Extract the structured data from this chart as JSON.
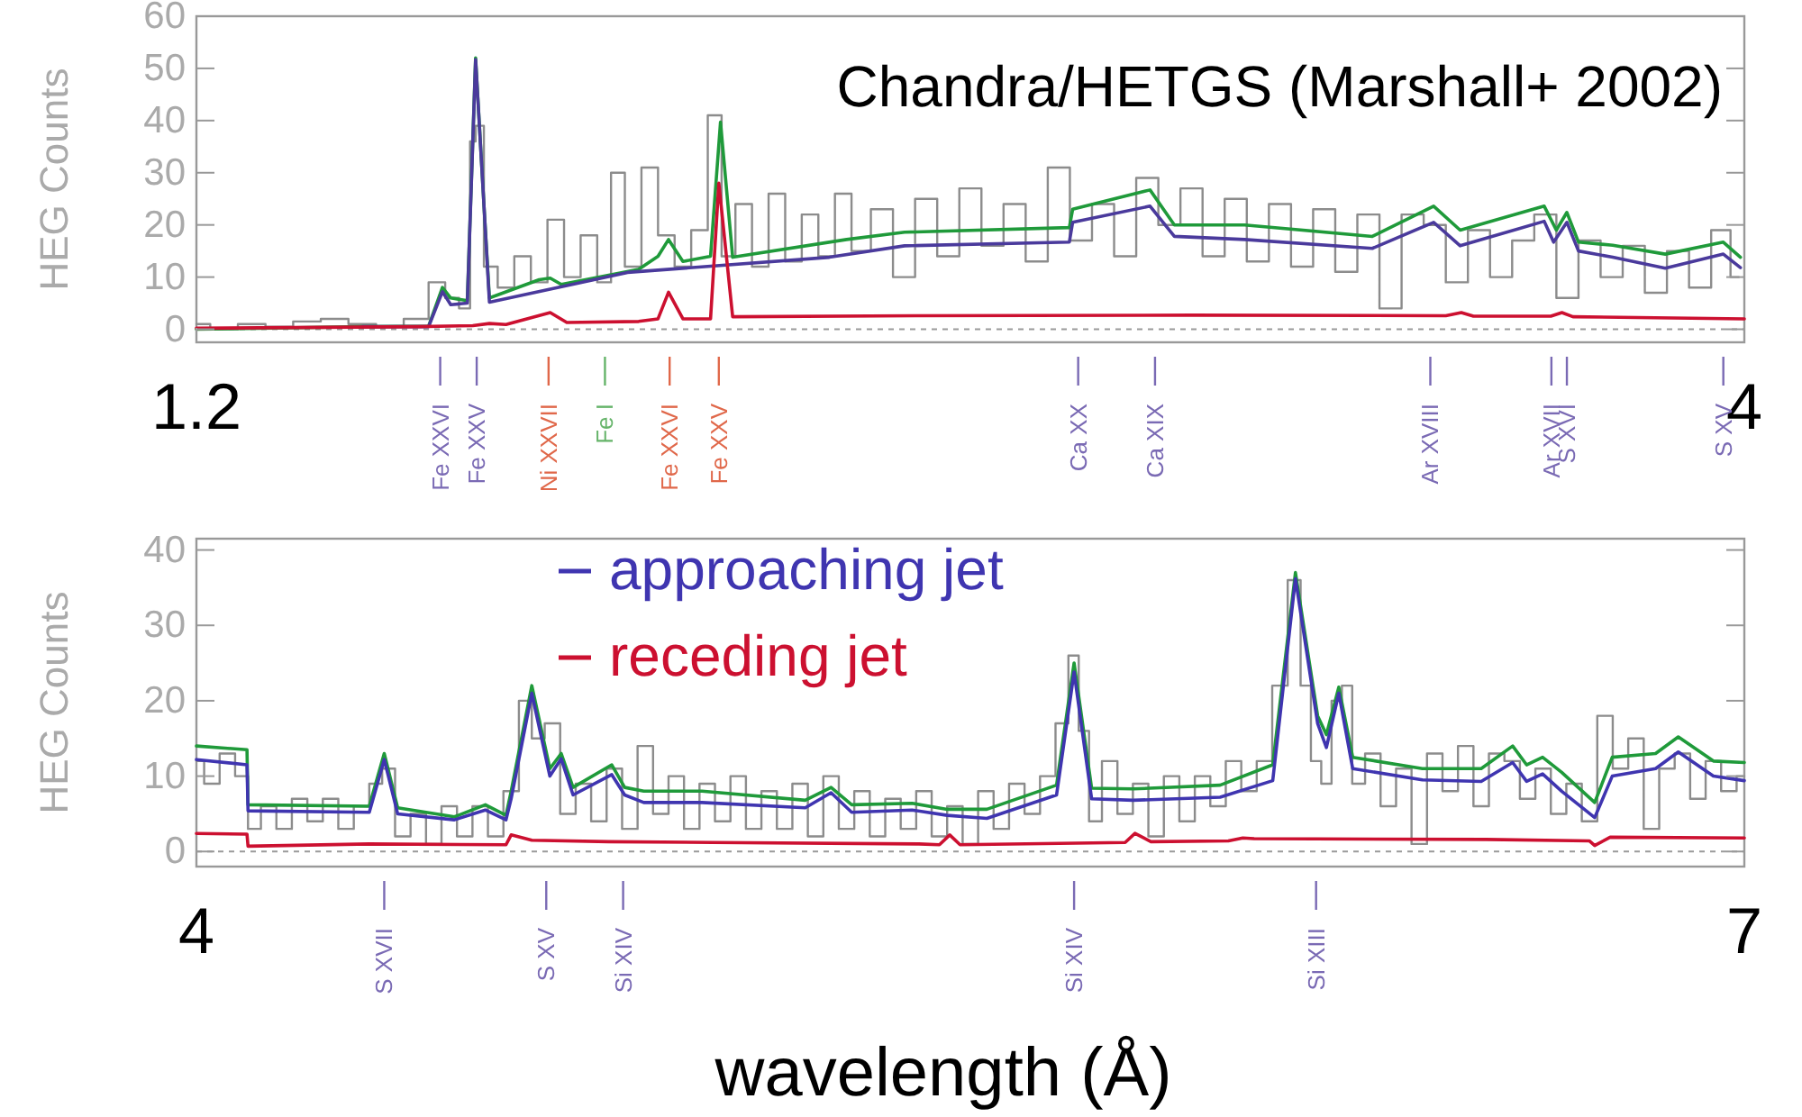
{
  "chart_data": [
    {
      "type": "line",
      "title": "Chandra/HETGS (Marshall+ 2002)",
      "ylabel": "HEG Counts",
      "xlim": [
        1.2,
        4
      ],
      "xticks": [
        1.2,
        4
      ],
      "ylim": [
        -2.5,
        60
      ],
      "yticks": [
        0,
        10,
        20,
        30,
        40,
        50,
        60
      ],
      "series": [
        {
          "type": "step",
          "color": "#8c8c8c",
          "x": [
            1.2,
            1.25,
            1.3,
            1.35,
            1.4,
            1.45,
            1.5,
            1.55,
            1.6,
            1.64,
            1.66,
            1.69,
            1.7,
            1.71,
            1.73,
            1.76,
            1.79,
            1.82,
            1.85,
            1.88,
            1.91,
            1.94,
            1.96,
            1.99,
            2.02,
            2.05,
            2.08,
            2.11,
            2.14,
            2.16,
            2.19,
            2.22,
            2.25,
            2.28,
            2.31,
            2.34,
            2.37,
            2.4,
            2.44,
            2.48,
            2.52,
            2.56,
            2.6,
            2.64,
            2.68,
            2.72,
            2.76,
            2.8,
            2.84,
            2.88,
            2.92,
            2.96,
            3.0,
            3.04,
            3.08,
            3.12,
            3.16,
            3.2,
            3.24,
            3.28,
            3.32,
            3.36,
            3.4,
            3.44,
            3.48,
            3.52,
            3.56,
            3.6,
            3.64,
            3.68,
            3.72,
            3.76,
            3.8,
            3.84,
            3.88,
            3.92,
            3.96,
            3.99
          ],
          "values": [
            1,
            0,
            1,
            0.5,
            1.5,
            2,
            1,
            0.5,
            2,
            9,
            6,
            4,
            36,
            39,
            12,
            8,
            14,
            9,
            21,
            10,
            18,
            9,
            30,
            12,
            31,
            18,
            12,
            19,
            41,
            14,
            24,
            12,
            26,
            13,
            22,
            14,
            26,
            15,
            23,
            10,
            25,
            14,
            27,
            16,
            24,
            13,
            31,
            17,
            24,
            14,
            29,
            20,
            27,
            14,
            25,
            13,
            24,
            12,
            23,
            11,
            22,
            4,
            22,
            20,
            9,
            19,
            10,
            17,
            22,
            6,
            17,
            10,
            16,
            7,
            15,
            8,
            19,
            10
          ]
        },
        {
          "color": "#1f9a3a",
          "x": [
            1.2,
            1.5,
            1.62,
            1.645,
            1.66,
            1.69,
            1.705,
            1.72,
            1.73,
            1.82,
            1.84,
            1.86,
            2.0,
            2.035,
            2.054,
            2.08,
            2.13,
            2.148,
            2.17,
            2.376,
            2.481,
            2.779,
            2.785,
            2.925,
            2.969,
            3.096,
            3.327,
            3.438,
            3.486,
            3.638,
            3.66,
            3.679,
            3.7,
            3.762,
            3.857,
            3.962,
            3.993
          ],
          "values": [
            0,
            0.5,
            0.6,
            8,
            6,
            5.5,
            52,
            24,
            6,
            9.5,
            9.8,
            8.6,
            11.5,
            14,
            17.2,
            13,
            14,
            39.7,
            13.8,
            17.2,
            18.6,
            19.5,
            23,
            26.7,
            20,
            20,
            17.8,
            23.6,
            19,
            23.6,
            19,
            22.4,
            16.7,
            16.1,
            14.4,
            16.7,
            13.8
          ]
        },
        {
          "name": null,
          "color": "#4a3a9c",
          "x": [
            1.5,
            1.62,
            1.645,
            1.66,
            1.69,
            1.705,
            1.72,
            1.73,
            1.98,
            2.345,
            2.481,
            2.779,
            2.785,
            2.925,
            2.969,
            3.096,
            3.327,
            3.438,
            3.486,
            3.638,
            3.655,
            3.679,
            3.7,
            3.762,
            3.857,
            3.962,
            3.993
          ],
          "values": [
            0.5,
            0.5,
            7.2,
            4.7,
            5,
            51.7,
            24,
            5.2,
            10.9,
            13.8,
            16,
            16.7,
            20.5,
            23.6,
            17.8,
            17.2,
            15.5,
            20.5,
            16,
            20.7,
            16.7,
            20.5,
            15,
            13.8,
            11.7,
            14.4,
            11.8
          ]
        },
        {
          "color": "#cc1030",
          "x": [
            1.2,
            1.6,
            1.7,
            1.73,
            1.76,
            1.84,
            1.87,
            2.0,
            2.035,
            2.054,
            2.08,
            2.13,
            2.145,
            2.17,
            2.5,
            3.0,
            3.46,
            3.488,
            3.51,
            3.65,
            3.67,
            3.69,
            4.0
          ],
          "values": [
            0.2,
            0.5,
            0.7,
            1.1,
            0.9,
            3.2,
            1.3,
            1.5,
            2,
            7.1,
            2,
            2,
            28,
            2.4,
            2.6,
            2.7,
            2.6,
            3.2,
            2.5,
            2.5,
            3.2,
            2.4,
            2
          ]
        }
      ],
      "ref_lines": [
        {
          "axis": "y",
          "value": 0,
          "line_style": "dashed",
          "color": "#9a9a9a"
        },
        {
          "axis": "x",
          "value": 1.641,
          "label": "Fe XXVI",
          "color": "#7a6ab4"
        },
        {
          "axis": "x",
          "value": 1.707,
          "label": "Fe XXV",
          "color": "#7a6ab4"
        },
        {
          "axis": "x",
          "value": 1.837,
          "label": "Ni XXVII",
          "color": "#e0684a"
        },
        {
          "axis": "x",
          "value": 1.939,
          "label": "Fe I",
          "color": "#66b46a"
        },
        {
          "axis": "x",
          "value": 2.056,
          "label": "Fe XXVI",
          "color": "#e0684a"
        },
        {
          "axis": "x",
          "value": 2.145,
          "label": "Fe XXV",
          "color": "#e0684a"
        },
        {
          "axis": "x",
          "value": 2.795,
          "label": "Ca XX",
          "color": "#7a6ab4"
        },
        {
          "axis": "x",
          "value": 2.934,
          "label": "Ca XIX",
          "color": "#7a6ab4"
        },
        {
          "axis": "x",
          "value": 3.432,
          "label": "Ar XVIII",
          "color": "#7a6ab4"
        },
        {
          "axis": "x",
          "value": 3.651,
          "label": "Ar XVII",
          "color": "#7a6ab4"
        },
        {
          "axis": "x",
          "value": 3.679,
          "label": "S XVI",
          "color": "#7a6ab4"
        },
        {
          "axis": "x",
          "value": 3.962,
          "label": "S XV",
          "color": "#7a6ab4"
        }
      ]
    },
    {
      "type": "line",
      "xlabel": "wavelength (Å)",
      "ylabel": "HEG Counts",
      "legend": "top",
      "xlim": [
        4,
        7
      ],
      "xticks": [
        4,
        7
      ],
      "ylim": [
        -2,
        41.5
      ],
      "yticks": [
        0,
        10,
        20,
        30,
        40
      ],
      "series": [
        {
          "type": "step",
          "color": "#8c8c8c",
          "x": [
            4.0,
            4.03,
            4.06,
            4.09,
            4.11,
            4.14,
            4.17,
            4.2,
            4.23,
            4.26,
            4.29,
            4.32,
            4.35,
            4.37,
            4.4,
            4.43,
            4.46,
            4.49,
            4.52,
            4.55,
            4.58,
            4.61,
            4.64,
            4.66,
            4.69,
            4.72,
            4.75,
            4.78,
            4.81,
            4.84,
            4.87,
            4.9,
            4.93,
            4.96,
            4.99,
            5.02,
            5.05,
            5.08,
            5.11,
            5.14,
            5.17,
            5.2,
            5.23,
            5.26,
            5.29,
            5.32,
            5.35,
            5.38,
            5.41,
            5.44,
            5.47,
            5.5,
            5.53,
            5.56,
            5.59,
            5.62,
            5.65,
            5.68,
            5.7,
            5.72,
            5.74,
            5.77,
            5.8,
            5.83,
            5.86,
            5.89,
            5.92,
            5.95,
            5.98,
            6.01,
            6.04,
            6.07,
            6.1,
            6.13,
            6.15,
            6.17,
            6.19,
            6.21,
            6.23,
            6.25,
            6.28,
            6.31,
            6.34,
            6.37,
            6.4,
            6.43,
            6.46,
            6.49,
            6.52,
            6.55,
            6.58,
            6.61,
            6.64,
            6.67,
            6.7,
            6.73,
            6.76,
            6.79,
            6.82,
            6.85,
            6.88,
            6.91,
            6.94,
            6.97,
            7.0
          ],
          "values": [
            12,
            9,
            13,
            10,
            3,
            6,
            3,
            7,
            4,
            7,
            3,
            6,
            9,
            11,
            2,
            5,
            1,
            6,
            2,
            6,
            2,
            8,
            20,
            15,
            17,
            5,
            9,
            4,
            11,
            3,
            14,
            5,
            10,
            3,
            9,
            4,
            10,
            3,
            8,
            3,
            9,
            2,
            10,
            3,
            8,
            2,
            7,
            3,
            8,
            2,
            6,
            1,
            8,
            3,
            9,
            5,
            10,
            17,
            26,
            16,
            4,
            12,
            5,
            9,
            2,
            10,
            4,
            10,
            6,
            12,
            8,
            12,
            22,
            36,
            22,
            12,
            9,
            20,
            22,
            9,
            13,
            6,
            11,
            1,
            13,
            8,
            14,
            6,
            13,
            12,
            7,
            11,
            5,
            9,
            4,
            18,
            11,
            15,
            3,
            11,
            13,
            7,
            12,
            8,
            10
          ]
        },
        {
          "color": "#1f9a3a",
          "x": [
            4.0,
            4.098,
            4.1,
            4.335,
            4.364,
            4.39,
            4.5,
            4.56,
            4.6,
            4.61,
            4.65,
            4.685,
            4.707,
            4.73,
            4.805,
            4.83,
            4.867,
            4.98,
            5.18,
            5.23,
            5.27,
            5.387,
            5.455,
            5.532,
            5.667,
            5.701,
            5.735,
            5.815,
            5.984,
            6.086,
            6.13,
            6.173,
            6.19,
            6.214,
            6.241,
            6.376,
            6.49,
            6.551,
            6.578,
            6.609,
            6.646,
            6.71,
            6.744,
            6.828,
            6.872,
            6.94,
            7.0
          ],
          "values": [
            14,
            13.5,
            6.2,
            6,
            13,
            5.8,
            4.6,
            6.2,
            4.8,
            8,
            22,
            11,
            13,
            8.5,
            11.5,
            8.5,
            8,
            8,
            6.8,
            8.5,
            6.2,
            6.4,
            5.6,
            5.6,
            8.8,
            25,
            8.4,
            8.3,
            8.8,
            11.5,
            37,
            18,
            15.5,
            21.8,
            12.5,
            11,
            11,
            14,
            11.5,
            12.5,
            10.5,
            6.5,
            12.5,
            13,
            15.2,
            12,
            11.8
          ]
        },
        {
          "name": "approaching jet",
          "color": "#3f35b0",
          "x": [
            4.0,
            4.098,
            4.1,
            4.335,
            4.364,
            4.39,
            4.5,
            4.56,
            4.6,
            4.61,
            4.65,
            4.685,
            4.707,
            4.73,
            4.805,
            4.83,
            4.867,
            4.98,
            5.18,
            5.23,
            5.27,
            5.387,
            5.455,
            5.532,
            5.667,
            5.701,
            5.735,
            5.815,
            5.984,
            6.086,
            6.13,
            6.173,
            6.19,
            6.214,
            6.241,
            6.376,
            6.49,
            6.551,
            6.578,
            6.609,
            6.646,
            6.71,
            6.744,
            6.828,
            6.872,
            6.94,
            7.0
          ],
          "values": [
            12.2,
            11.5,
            5.4,
            5.2,
            12.2,
            5,
            4.2,
            5.5,
            4.2,
            7,
            21,
            10,
            12.3,
            7.5,
            10.2,
            7.5,
            6.5,
            6.5,
            5.8,
            7.8,
            5.2,
            5.5,
            4.8,
            4.4,
            7.5,
            23.8,
            7,
            6.8,
            7.2,
            9.4,
            36.2,
            17,
            13.8,
            21,
            11,
            9.5,
            9.3,
            11.8,
            9.3,
            10.3,
            8,
            4.5,
            10,
            11,
            13.2,
            10,
            9.4
          ]
        },
        {
          "name": "receding jet",
          "color": "#cc1030",
          "x": [
            4.0,
            4.098,
            4.1,
            4.335,
            4.6,
            4.61,
            4.65,
            4.8,
            5.0,
            5.4,
            5.44,
            5.46,
            5.48,
            5.8,
            5.819,
            5.85,
            6.0,
            6.028,
            6.05,
            6.5,
            6.7,
            6.71,
            6.74,
            7.0
          ],
          "values": [
            2.4,
            2.3,
            0.7,
            1,
            0.9,
            2.2,
            1.5,
            1.3,
            1.2,
            1,
            0.9,
            2.2,
            0.9,
            1.2,
            2.4,
            1.3,
            1.4,
            1.8,
            1.7,
            1.6,
            1.4,
            0.8,
            1.9,
            1.8
          ]
        }
      ],
      "ref_lines": [
        {
          "axis": "y",
          "value": 0,
          "line_style": "dashed",
          "color": "#9a9a9a"
        },
        {
          "axis": "x",
          "value": 4.364,
          "label": "S XVII",
          "color": "#7a6ab4"
        },
        {
          "axis": "x",
          "value": 4.678,
          "label": "S XV",
          "color": "#7a6ab4"
        },
        {
          "axis": "x",
          "value": 4.827,
          "label": "Si XIV",
          "color": "#7a6ab4"
        },
        {
          "axis": "x",
          "value": 5.701,
          "label": "Si XIV",
          "color": "#7a6ab4"
        },
        {
          "axis": "x",
          "value": 6.17,
          "label": "Si XIII",
          "color": "#7a6ab4"
        }
      ]
    }
  ]
}
